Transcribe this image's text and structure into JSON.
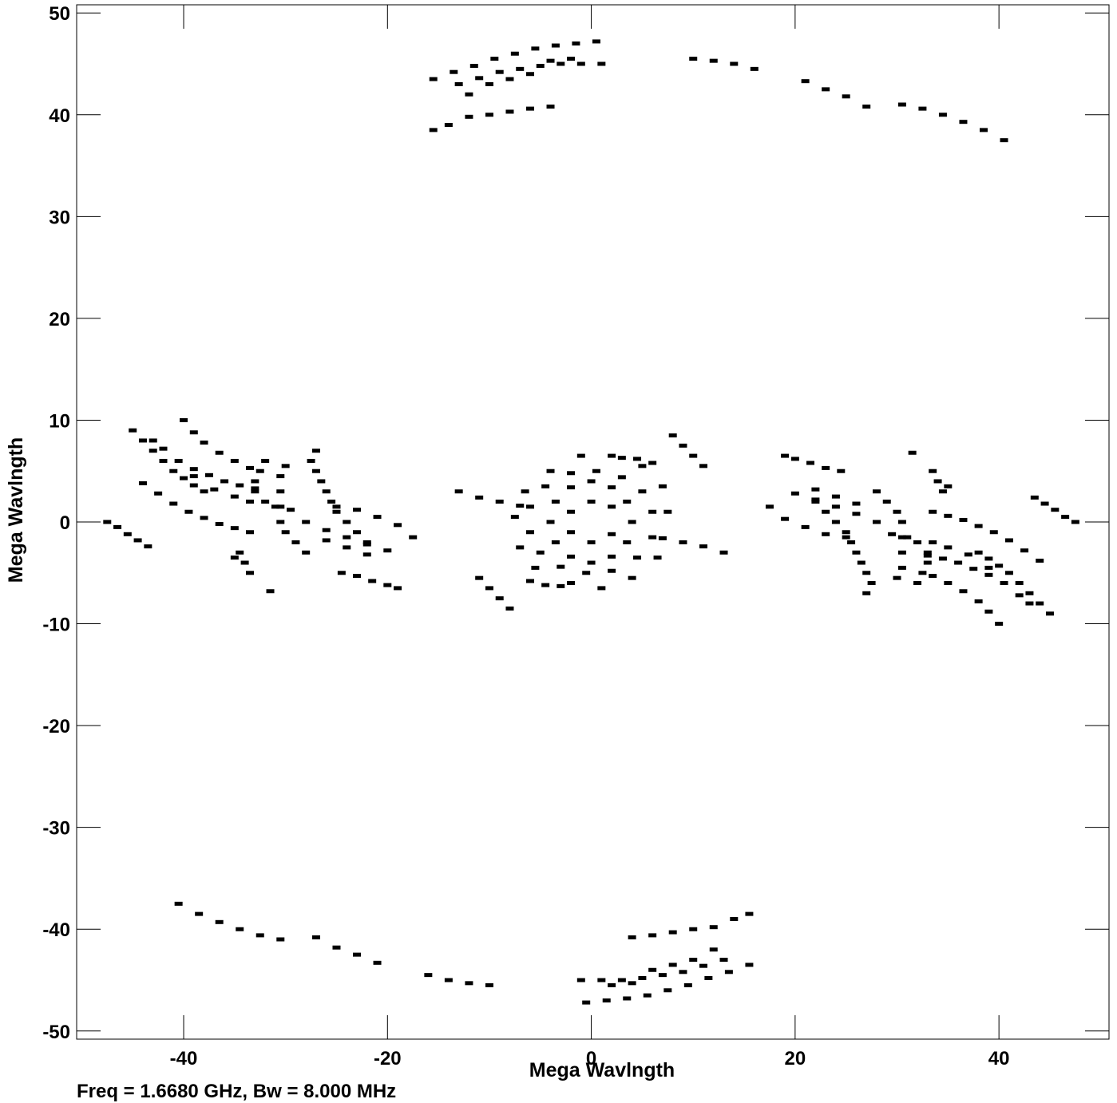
{
  "chart_data": {
    "type": "scatter",
    "title": "",
    "xlabel": "Mega Wavlngth",
    "ylabel": "Mega Wavlngth",
    "xlim": [
      -50.5,
      50.8
    ],
    "ylim": [
      -50.8,
      50.8
    ],
    "xticks": [
      -40,
      -20,
      0,
      20,
      40
    ],
    "xtick_labels": [
      "-40",
      "-20",
      "0",
      "20",
      "40"
    ],
    "yticks": [
      50,
      40,
      30,
      20,
      10,
      0,
      -10,
      -20,
      -30,
      -40,
      -50
    ],
    "ytick_labels": [
      "50",
      "40",
      "30",
      "20",
      "10",
      "0",
      "-10",
      "-20",
      "-30",
      "-40",
      "-50"
    ],
    "grid": false,
    "marker_color": "#000000",
    "footer": "Freq = 1.6680 GHz, Bw = 8.000 MHz",
    "series": [
      {
        "values": [
          [
            -15.5,
            38.5
          ],
          [
            -14,
            39
          ],
          [
            -12,
            39.8
          ],
          [
            -10,
            40
          ],
          [
            -8,
            40.3
          ],
          [
            -6,
            40.6
          ],
          [
            -4,
            40.8
          ],
          [
            -15.5,
            43.5
          ],
          [
            -13.5,
            44.2
          ],
          [
            -11.5,
            44.8
          ],
          [
            -9.5,
            45.5
          ],
          [
            -7.5,
            46
          ],
          [
            -5.5,
            46.5
          ],
          [
            -3.5,
            46.8
          ],
          [
            -1.5,
            47
          ],
          [
            0.5,
            47.2
          ],
          [
            -13,
            43
          ],
          [
            -11,
            43.6
          ],
          [
            -9,
            44.2
          ],
          [
            -7,
            44.5
          ],
          [
            -5,
            44.8
          ],
          [
            -3,
            45
          ],
          [
            -1,
            45
          ],
          [
            1,
            45
          ],
          [
            -12,
            42
          ],
          [
            -10,
            43
          ],
          [
            -8,
            43.5
          ],
          [
            -6,
            44
          ],
          [
            -4,
            45.3
          ],
          [
            -2,
            45.5
          ],
          [
            10,
            45.5
          ],
          [
            12,
            45.3
          ],
          [
            14,
            45
          ],
          [
            16,
            44.5
          ],
          [
            21,
            43.3
          ],
          [
            23,
            42.5
          ],
          [
            25,
            41.8
          ],
          [
            27,
            40.8
          ],
          [
            30.5,
            41
          ],
          [
            32.5,
            40.6
          ],
          [
            34.5,
            40
          ],
          [
            36.5,
            39.3
          ],
          [
            38.5,
            38.5
          ],
          [
            40.5,
            37.5
          ],
          [
            15.5,
            -38.5
          ],
          [
            14,
            -39
          ],
          [
            12,
            -39.8
          ],
          [
            10,
            -40
          ],
          [
            8,
            -40.3
          ],
          [
            6,
            -40.6
          ],
          [
            4,
            -40.8
          ],
          [
            15.5,
            -43.5
          ],
          [
            13.5,
            -44.2
          ],
          [
            11.5,
            -44.8
          ],
          [
            9.5,
            -45.5
          ],
          [
            7.5,
            -46
          ],
          [
            5.5,
            -46.5
          ],
          [
            3.5,
            -46.8
          ],
          [
            1.5,
            -47
          ],
          [
            -0.5,
            -47.2
          ],
          [
            13,
            -43
          ],
          [
            11,
            -43.6
          ],
          [
            9,
            -44.2
          ],
          [
            7,
            -44.5
          ],
          [
            5,
            -44.8
          ],
          [
            3,
            -45
          ],
          [
            1,
            -45
          ],
          [
            -1,
            -45
          ],
          [
            12,
            -42
          ],
          [
            10,
            -43
          ],
          [
            8,
            -43.5
          ],
          [
            6,
            -44
          ],
          [
            4,
            -45.3
          ],
          [
            2,
            -45.5
          ],
          [
            -10,
            -45.5
          ],
          [
            -12,
            -45.3
          ],
          [
            -14,
            -45
          ],
          [
            -16,
            -44.5
          ],
          [
            -21,
            -43.3
          ],
          [
            -23,
            -42.5
          ],
          [
            -25,
            -41.8
          ],
          [
            -27,
            -40.8
          ],
          [
            -30.5,
            -41
          ],
          [
            -32.5,
            -40.6
          ],
          [
            -34.5,
            -40
          ],
          [
            -36.5,
            -39.3
          ],
          [
            -38.5,
            -38.5
          ],
          [
            -40.5,
            -37.5
          ],
          [
            -47.5,
            0
          ],
          [
            -46.5,
            -0.5
          ],
          [
            -45.5,
            -1.2
          ],
          [
            -44.5,
            -1.8
          ],
          [
            -43.5,
            -2.4
          ],
          [
            -45,
            9
          ],
          [
            -44,
            8
          ],
          [
            -43,
            7
          ],
          [
            -42,
            6
          ],
          [
            -41,
            5
          ],
          [
            -40,
            4.3
          ],
          [
            -39,
            3.6
          ],
          [
            -38,
            3
          ],
          [
            -43,
            8
          ],
          [
            -42,
            7.2
          ],
          [
            -40.5,
            6
          ],
          [
            -39,
            5.2
          ],
          [
            -37.5,
            4.6
          ],
          [
            -36,
            4
          ],
          [
            -34.5,
            3.6
          ],
          [
            -33,
            3.3
          ],
          [
            -40,
            10
          ],
          [
            -39,
            8.8
          ],
          [
            -38,
            7.8
          ],
          [
            -36.5,
            6.8
          ],
          [
            -35,
            6
          ],
          [
            -33.5,
            5.3
          ],
          [
            -44,
            3.8
          ],
          [
            -42.5,
            2.8
          ],
          [
            -41,
            1.8
          ],
          [
            -39.5,
            1
          ],
          [
            -38,
            0.4
          ],
          [
            -36.5,
            -0.2
          ],
          [
            -35,
            -0.6
          ],
          [
            -33.5,
            -1
          ],
          [
            -39,
            4.5
          ],
          [
            -37,
            3.2
          ],
          [
            -35,
            2.5
          ],
          [
            -33.5,
            2
          ],
          [
            -32,
            6
          ],
          [
            -32.5,
            5
          ],
          [
            -33,
            4
          ],
          [
            -33,
            3
          ],
          [
            -32,
            2
          ],
          [
            -31,
            1.5
          ],
          [
            -30,
            5.5
          ],
          [
            -30.5,
            4.5
          ],
          [
            -30.5,
            3
          ],
          [
            -30.5,
            1.5
          ],
          [
            -30.5,
            0
          ],
          [
            -30,
            -1
          ],
          [
            -29,
            -2
          ],
          [
            -28,
            -3
          ],
          [
            -27,
            7
          ],
          [
            -27.5,
            6
          ],
          [
            -27,
            5
          ],
          [
            -26.5,
            4
          ],
          [
            -26,
            3
          ],
          [
            -25.5,
            2
          ],
          [
            -25,
            1
          ],
          [
            -24,
            0
          ],
          [
            -23,
            -1
          ],
          [
            -22,
            -2
          ],
          [
            -29.5,
            1.2
          ],
          [
            -28,
            0
          ],
          [
            -26,
            -0.8
          ],
          [
            -24,
            -1.5
          ],
          [
            -22,
            -2.2
          ],
          [
            -20,
            -2.8
          ],
          [
            -25,
            1.5
          ],
          [
            -23,
            1.2
          ],
          [
            -21,
            0.5
          ],
          [
            -19,
            -0.3
          ],
          [
            -17.5,
            -1.5
          ],
          [
            -26,
            -1.8
          ],
          [
            -24,
            -2.5
          ],
          [
            -22,
            -3.2
          ],
          [
            -34.5,
            -3
          ],
          [
            -34,
            -4
          ],
          [
            -33.5,
            -5
          ],
          [
            -35,
            -3.5
          ],
          [
            -24.5,
            -5
          ],
          [
            -23,
            -5.3
          ],
          [
            -21.5,
            -5.8
          ],
          [
            -20,
            -6.2
          ],
          [
            -19,
            -6.5
          ],
          [
            -31.5,
            -6.8
          ],
          [
            47.5,
            0
          ],
          [
            46.5,
            0.5
          ],
          [
            45.5,
            1.2
          ],
          [
            44.5,
            1.8
          ],
          [
            43.5,
            2.4
          ],
          [
            45,
            -9
          ],
          [
            44,
            -8
          ],
          [
            43,
            -7
          ],
          [
            42,
            -6
          ],
          [
            41,
            -5
          ],
          [
            40,
            -4.3
          ],
          [
            39,
            -3.6
          ],
          [
            38,
            -3
          ],
          [
            43,
            -8
          ],
          [
            42,
            -7.2
          ],
          [
            40.5,
            -6
          ],
          [
            39,
            -5.2
          ],
          [
            37.5,
            -4.6
          ],
          [
            36,
            -4
          ],
          [
            34.5,
            -3.6
          ],
          [
            33,
            -3.3
          ],
          [
            40,
            -10
          ],
          [
            39,
            -8.8
          ],
          [
            38,
            -7.8
          ],
          [
            36.5,
            -6.8
          ],
          [
            35,
            -6
          ],
          [
            33.5,
            -5.3
          ],
          [
            44,
            -3.8
          ],
          [
            42.5,
            -2.8
          ],
          [
            41,
            -1.8
          ],
          [
            39.5,
            -1
          ],
          [
            38,
            -0.4
          ],
          [
            36.5,
            0.2
          ],
          [
            35,
            0.6
          ],
          [
            33.5,
            1
          ],
          [
            39,
            -4.5
          ],
          [
            37,
            -3.2
          ],
          [
            35,
            -2.5
          ],
          [
            33.5,
            -2
          ],
          [
            32,
            -6
          ],
          [
            32.5,
            -5
          ],
          [
            33,
            -4
          ],
          [
            33,
            -3
          ],
          [
            32,
            -2
          ],
          [
            31,
            -1.5
          ],
          [
            30,
            -5.5
          ],
          [
            30.5,
            -4.5
          ],
          [
            30.5,
            -3
          ],
          [
            30.5,
            -1.5
          ],
          [
            30.5,
            0
          ],
          [
            30,
            1
          ],
          [
            29,
            2
          ],
          [
            28,
            3
          ],
          [
            27,
            -7
          ],
          [
            27.5,
            -6
          ],
          [
            27,
            -5
          ],
          [
            26.5,
            -4
          ],
          [
            26,
            -3
          ],
          [
            25.5,
            -2
          ],
          [
            25,
            -1
          ],
          [
            24,
            0
          ],
          [
            23,
            1
          ],
          [
            22,
            2
          ],
          [
            29.5,
            -1.2
          ],
          [
            28,
            0
          ],
          [
            26,
            0.8
          ],
          [
            24,
            1.5
          ],
          [
            22,
            2.2
          ],
          [
            20,
            2.8
          ],
          [
            25,
            -1.5
          ],
          [
            23,
            -1.2
          ],
          [
            21,
            -0.5
          ],
          [
            19,
            0.3
          ],
          [
            17.5,
            1.5
          ],
          [
            26,
            1.8
          ],
          [
            24,
            2.5
          ],
          [
            22,
            3.2
          ],
          [
            34.5,
            3
          ],
          [
            34,
            4
          ],
          [
            33.5,
            5
          ],
          [
            35,
            3.5
          ],
          [
            24.5,
            5
          ],
          [
            23,
            5.3
          ],
          [
            21.5,
            5.8
          ],
          [
            20,
            6.2
          ],
          [
            19,
            6.5
          ],
          [
            31.5,
            6.8
          ],
          [
            4,
            0
          ],
          [
            3.5,
            2
          ],
          [
            2,
            3.4
          ],
          [
            0,
            4
          ],
          [
            -2,
            3.4
          ],
          [
            -3.5,
            2
          ],
          [
            -4,
            0
          ],
          [
            -3.5,
            -2
          ],
          [
            -2,
            -3.4
          ],
          [
            0,
            -4
          ],
          [
            2,
            -3.4
          ],
          [
            3.5,
            -2
          ],
          [
            6,
            1
          ],
          [
            5,
            3
          ],
          [
            3,
            4.4
          ],
          [
            0.5,
            5
          ],
          [
            -2,
            4.8
          ],
          [
            -4.5,
            3.5
          ],
          [
            -6,
            1.5
          ],
          [
            -6,
            -1
          ],
          [
            -5,
            -3
          ],
          [
            -3,
            -4.4
          ],
          [
            -0.5,
            -5
          ],
          [
            2,
            -4.8
          ],
          [
            4.5,
            -3.5
          ],
          [
            6,
            -1.5
          ],
          [
            7.5,
            1
          ],
          [
            7,
            3.5
          ],
          [
            5,
            5.5
          ],
          [
            2,
            6.5
          ],
          [
            -1,
            6.5
          ],
          [
            -4,
            5
          ],
          [
            -6.5,
            3
          ],
          [
            -7.5,
            0.5
          ],
          [
            -7,
            -2.5
          ],
          [
            -5.5,
            -4.5
          ],
          [
            -2,
            -6
          ],
          [
            1,
            -6.5
          ],
          [
            4,
            -5.5
          ],
          [
            6.5,
            -3.5
          ],
          [
            2,
            1.5
          ],
          [
            0,
            2
          ],
          [
            -2,
            1
          ],
          [
            -2,
            -1
          ],
          [
            0,
            -2
          ],
          [
            2,
            -1.2
          ],
          [
            -13,
            3
          ],
          [
            -11,
            2.4
          ],
          [
            -9,
            2
          ],
          [
            -7,
            1.6
          ],
          [
            13,
            -3
          ],
          [
            11,
            -2.4
          ],
          [
            9,
            -2
          ],
          [
            7,
            -1.6
          ],
          [
            8,
            8.5
          ],
          [
            9,
            7.5
          ],
          [
            10,
            6.5
          ],
          [
            11,
            5.5
          ],
          [
            -8,
            -8.5
          ],
          [
            -9,
            -7.5
          ],
          [
            -10,
            -6.5
          ],
          [
            -11,
            -5.5
          ],
          [
            3,
            6.3
          ],
          [
            4.5,
            6.2
          ],
          [
            6,
            5.8
          ],
          [
            -3,
            -6.3
          ],
          [
            -4.5,
            -6.2
          ],
          [
            -6,
            -5.8
          ]
        ]
      }
    ]
  }
}
